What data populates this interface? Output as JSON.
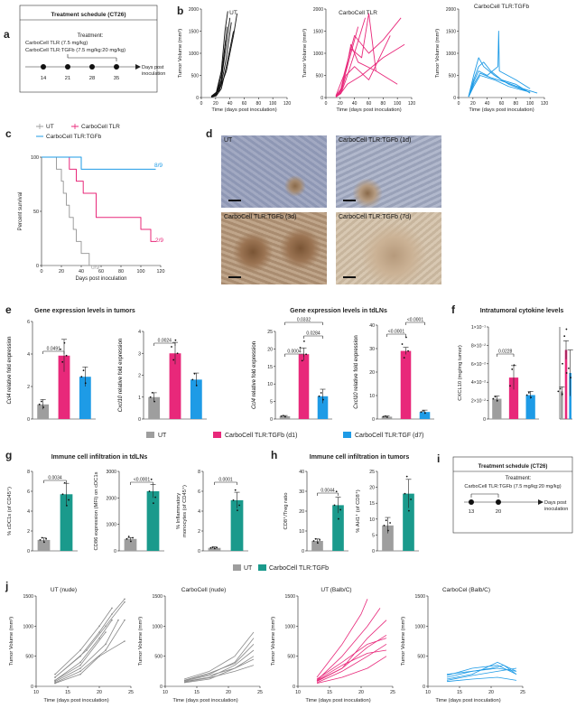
{
  "panels": {
    "a": {
      "letter": "a",
      "title": "Treatment schedule (CT26)",
      "treatment_title": "Treatment:",
      "drug1": "CarboCell TLR (7.5 mg/kg)",
      "drug2": "CarboCell TLR:TGFb (7.5 mg/kg:20 mg/kg)",
      "days": [
        "14",
        "21",
        "28",
        "35"
      ],
      "axis_label": "Days post inoculation"
    },
    "b": {
      "letter": "b",
      "titles": [
        "UT",
        "CarboCell TLR",
        "CarboCell TLR:TGFb"
      ],
      "ylabel": "Tumor Volume (mm³)",
      "xlabel": "Time (days post inoculation)",
      "yticks": [
        "0",
        "500",
        "1000",
        "1500",
        "2000"
      ],
      "xticks": [
        "0",
        "20",
        "40",
        "60",
        "80",
        "100",
        "120"
      ],
      "colors": [
        "#111111",
        "#e8287a",
        "#1e9be6"
      ]
    },
    "c": {
      "letter": "c",
      "legend": [
        "UT",
        "CarboCell TLR",
        "CarboCell TLR:TGFb"
      ],
      "ylabel": "Percent survival",
      "xlabel": "Days post inoculation",
      "yticks": [
        "0",
        "50",
        "100"
      ],
      "xticks": [
        "0",
        "20",
        "40",
        "60",
        "80",
        "100",
        "120"
      ],
      "annotations": [
        "8/9",
        "2/9",
        "0/9"
      ]
    },
    "d": {
      "letter": "d",
      "captions": [
        "UT",
        "CarboCell TLR:TGFb (1d)",
        "CarboCell TLR:TGFb (3d)",
        "CarboCell TLR:TGFb (7d)"
      ]
    },
    "e": {
      "letter": "e",
      "title1": "Gene expression levels in tumors",
      "title2": "Gene expression levels in tdLNs",
      "charts": [
        {
          "ylabel_gene": "Ccl4",
          "ylabel_rest": " relative fold expression",
          "yticks": [
            "0",
            "2",
            "4",
            "6"
          ],
          "pvals": [
            "0.0491"
          ]
        },
        {
          "ylabel_gene": "Cxcl10",
          "ylabel_rest": " relative fold expression",
          "yticks": [
            "0",
            "1",
            "2",
            "3",
            "4"
          ],
          "pvals": [
            "0.0024"
          ]
        },
        {
          "ylabel_gene": "Ccl4",
          "ylabel_rest": " relative fold expression",
          "yticks": [
            "0",
            "5",
            "10",
            "15",
            "20",
            "25"
          ],
          "pvals": [
            "0.0004",
            "0.0284",
            "0.0332"
          ]
        },
        {
          "ylabel_gene": "Cxcl10",
          "ylabel_rest": " relative fold expression",
          "yticks": [
            "0",
            "10",
            "20",
            "30",
            "40"
          ],
          "pvals": [
            "<0.0001",
            "<0.0001"
          ]
        }
      ]
    },
    "f": {
      "letter": "f",
      "title": "Intratumoral cytokine levels",
      "charts": [
        {
          "ylabel": "CXCL10 (mg/mg tumor)",
          "yticks": [
            "0",
            "2×10⁻²",
            "4×10⁻²",
            "6×10⁻²",
            "8×10⁻²",
            "1×10⁻¹"
          ],
          "pvals": [
            "0.0228"
          ]
        },
        {
          "ylabel": "IFN-β (mg/mg tumor)",
          "yticks": [
            "0",
            "5×10⁻⁴",
            "1×10⁻³",
            "1.5×10⁻³",
            "2×10⁻³"
          ],
          "pvals": []
        }
      ]
    },
    "legend1": [
      "UT",
      "CarboCell TLR:TGFb (d1)",
      "CarboCell TLR:TGF (d7)"
    ],
    "g": {
      "letter": "g",
      "title": "Immune cell infiltration in tdLNs",
      "charts": [
        {
          "ylabel": "% cDC1s (of CD45⁺)",
          "yticks": [
            "0",
            "2",
            "4",
            "6",
            "8"
          ],
          "pvals": [
            "0.0034"
          ]
        },
        {
          "ylabel": "CD86 expression (MFI) on cDC1s",
          "yticks": [
            "0",
            "1000",
            "2000",
            "3000"
          ],
          "pvals": [
            "<0.0001"
          ]
        },
        {
          "ylabel": "% Inflammatory monocytes (of CD45⁺)",
          "yticks": [
            "0",
            "2",
            "4",
            "6",
            "8"
          ],
          "pvals": [
            "0.0001"
          ]
        }
      ]
    },
    "h": {
      "letter": "h",
      "title": "Immune cell infiltration in tumors",
      "charts": [
        {
          "ylabel": "CD8⁺/Treg ratio",
          "yticks": [
            "0",
            "10",
            "20",
            "30",
            "40"
          ],
          "pvals": [
            "0.0044"
          ]
        },
        {
          "ylabel": "% AH1⁺ (of CD8⁺)",
          "yticks": [
            "0",
            "5",
            "10",
            "15",
            "20",
            "25"
          ],
          "pvals": []
        }
      ]
    },
    "i": {
      "letter": "i",
      "title": "Treatment schedule (CT26)",
      "treatment_title": "Treatment:",
      "drug": "CarboCell TLR:TGFb (7.5 mg/kg:20 mg/kg)",
      "days": [
        "13",
        "20"
      ],
      "axis_label": "Days post inoculation"
    },
    "legend2": [
      "UT",
      "CarboCell TLR:TGFb"
    ],
    "j": {
      "letter": "j",
      "titles": [
        "UT (nude)",
        "CarboCell (nude)",
        "UT (Balb/C)",
        "CarboCel (Balb/C)"
      ],
      "ylabel": "Tumor Volume (mm³)",
      "xlabel": "Time (days post inoculation)",
      "yticks": [
        "0",
        "500",
        "1000",
        "1500"
      ],
      "xticks": [
        "10",
        "15",
        "20",
        "25"
      ]
    }
  },
  "colors": {
    "ut": "#9e9e9e",
    "pink": "#e8287a",
    "blue": "#1e9be6",
    "teal": "#1a9a8c",
    "black": "#111111"
  },
  "chart_data": [
    {
      "type": "bar",
      "panel": "e",
      "categories": [
        "UT",
        "CarboCell TLR:TGFb (d1)",
        "CarboCell TLR:TGF (d7)"
      ],
      "values": [
        0.9,
        3.9,
        2.6
      ],
      "errors": [
        0.3,
        1.0,
        0.6
      ],
      "ylim": [
        0,
        6
      ]
    },
    {
      "type": "bar",
      "panel": "e",
      "categories": [
        "UT",
        "CarboCell TLR:TGFb (d1)",
        "CarboCell TLR:TGF (d7)"
      ],
      "values": [
        1.0,
        3.0,
        1.8
      ],
      "errors": [
        0.2,
        0.5,
        0.3
      ],
      "ylim": [
        0,
        4
      ]
    },
    {
      "type": "bar",
      "panel": "e",
      "categories": [
        "UT",
        "CarboCell TLR:TGFb (d1)",
        "CarboCell TLR:TGF (d7)"
      ],
      "values": [
        0.8,
        18.5,
        6.5
      ],
      "errors": [
        0.2,
        1.8,
        2.0
      ],
      "ylim": [
        0,
        25
      ]
    },
    {
      "type": "bar",
      "panel": "e",
      "categories": [
        "UT",
        "CarboCell TLR:TGFb (d1)",
        "CarboCell TLR:TGF (d7)"
      ],
      "values": [
        1.0,
        29.0,
        3.0
      ],
      "errors": [
        0.3,
        1.5,
        0.8
      ],
      "ylim": [
        0,
        40
      ]
    },
    {
      "type": "bar",
      "panel": "f",
      "categories": [
        "UT",
        "CarboCell TLR:TGFb (d1)",
        "CarboCell TLR:TGF (d7)"
      ],
      "values": [
        0.022,
        0.045,
        0.026
      ],
      "errors": [
        0.003,
        0.013,
        0.004
      ],
      "ylim": [
        0,
        0.1
      ]
    },
    {
      "type": "bar",
      "panel": "f",
      "categories": [
        "UT",
        "CarboCell TLR:TGFb (d1)",
        "CarboCell TLR:TGF (d7)"
      ],
      "values": [
        0.0006,
        0.0015,
        0.001
      ],
      "errors": [
        0.0001,
        0.0002,
        0.0005
      ],
      "ylim": [
        0,
        0.002
      ]
    },
    {
      "type": "bar",
      "panel": "g",
      "categories": [
        "UT",
        "CarboCell TLR:TGFb"
      ],
      "values": [
        1.1,
        5.7
      ],
      "errors": [
        0.2,
        1.1
      ],
      "ylim": [
        0,
        8
      ]
    },
    {
      "type": "bar",
      "panel": "g",
      "categories": [
        "UT",
        "CarboCell TLR:TGFb"
      ],
      "values": [
        450,
        2250
      ],
      "errors": [
        50,
        250
      ],
      "ylim": [
        0,
        3000
      ]
    },
    {
      "type": "bar",
      "panel": "g",
      "categories": [
        "UT",
        "CarboCell TLR:TGFb"
      ],
      "values": [
        0.3,
        5.1
      ],
      "errors": [
        0.1,
        0.8
      ],
      "ylim": [
        0,
        8
      ]
    },
    {
      "type": "bar",
      "panel": "h",
      "categories": [
        "UT",
        "CarboCell TLR:TGFb"
      ],
      "values": [
        5,
        23
      ],
      "errors": [
        1,
        4
      ],
      "ylim": [
        0,
        40
      ]
    },
    {
      "type": "bar",
      "panel": "h",
      "categories": [
        "UT",
        "CarboCell TLR:TGFb"
      ],
      "values": [
        8,
        18
      ],
      "errors": [
        2.5,
        4.5
      ],
      "ylim": [
        0,
        25
      ]
    },
    {
      "type": "line",
      "panel": "c",
      "series": [
        {
          "name": "UT",
          "x": [
            0,
            15,
            20,
            22,
            25,
            28,
            32,
            35,
            40,
            48
          ],
          "y": [
            100,
            88.9,
            77.8,
            66.7,
            55.6,
            44.4,
            33.3,
            22.2,
            11.1,
            0
          ]
        },
        {
          "name": "CarboCell TLR",
          "x": [
            0,
            28,
            35,
            42,
            55,
            100,
            110,
            115
          ],
          "y": [
            100,
            88.9,
            77.8,
            66.7,
            44.4,
            33.3,
            22.2,
            22.2
          ]
        },
        {
          "name": "CarboCell TLR:TGFb",
          "x": [
            0,
            40,
            115
          ],
          "y": [
            100,
            88.9,
            88.9
          ]
        }
      ],
      "ylim": [
        0,
        100
      ],
      "xlim": [
        0,
        120
      ]
    }
  ]
}
